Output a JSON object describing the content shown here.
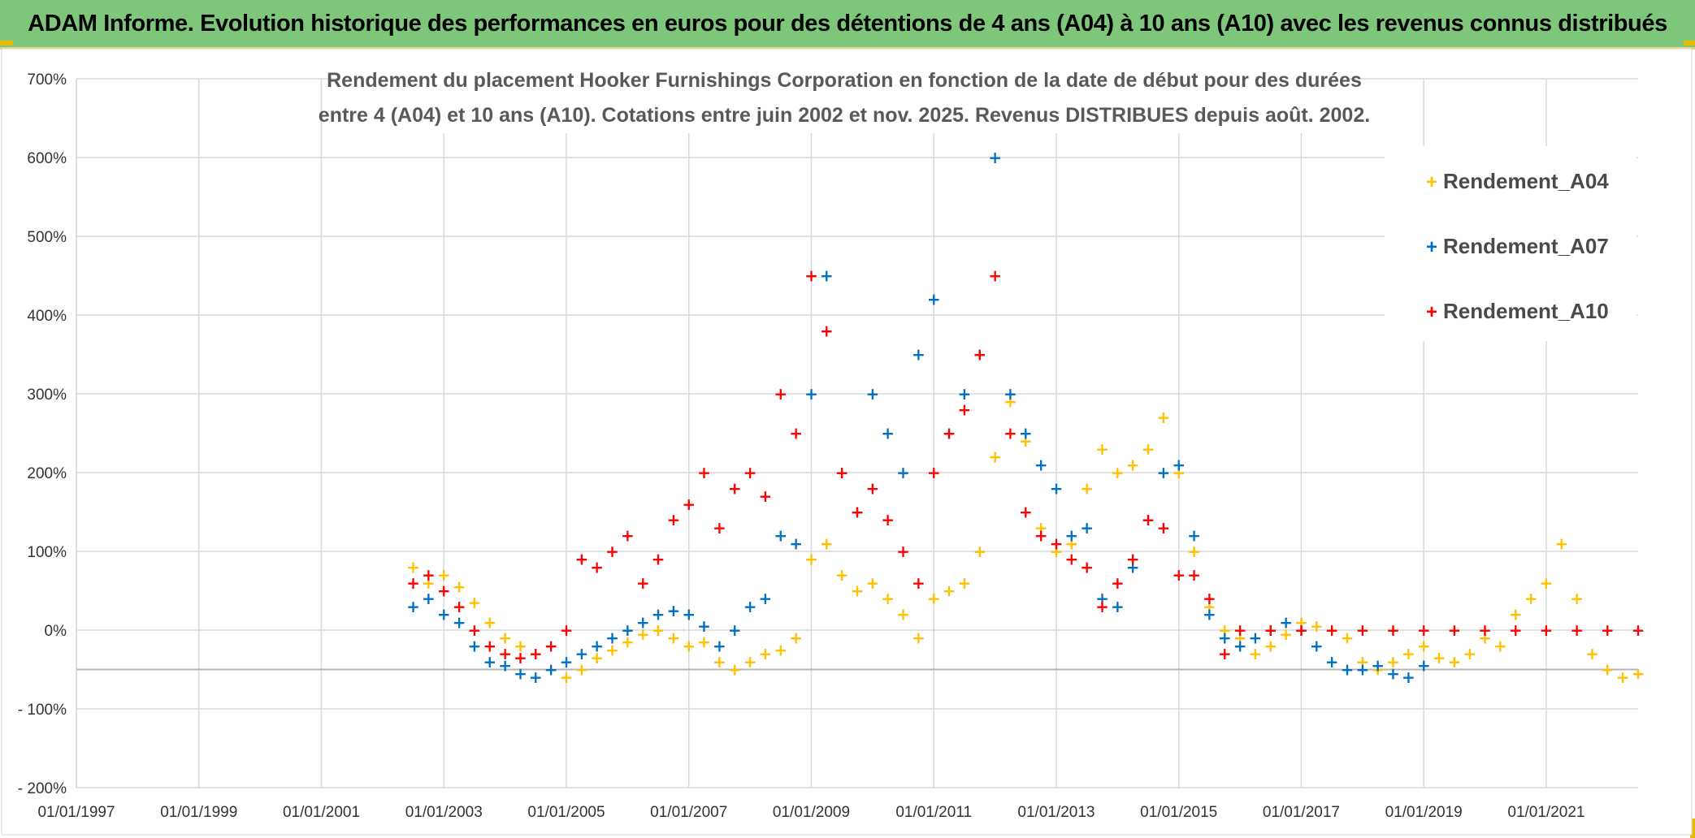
{
  "header": {
    "banner": "ADAM Informe. Evolution historique des performances en euros pour des détentions de 4 ans (A04) à 10 ans (A10) avec les revenus connus distribués"
  },
  "chart_data": {
    "type": "scatter",
    "title_lines": [
      "Rendement du placement Hooker Furnishings Corporation en fonction de la date de début pour des durées",
      "entre 4 (A04) et 10 ans (A10). Cotations entre juin 2002 et nov. 2025. Revenus DISTRIBUES depuis août. 2002."
    ],
    "xlabel": "",
    "ylabel": "",
    "xlim": [
      1997.0,
      2022.5
    ],
    "ylim": [
      -200,
      700
    ],
    "x_ticks": [
      "01/01/1997",
      "01/01/1999",
      "01/01/2001",
      "01/01/2003",
      "01/01/2005",
      "01/01/2007",
      "01/01/2009",
      "01/01/2011",
      "01/01/2013",
      "01/01/2015",
      "01/01/2017",
      "01/01/2019",
      "01/01/2021"
    ],
    "x_tick_values": [
      1997,
      1999,
      2001,
      2003,
      2005,
      2007,
      2009,
      2011,
      2013,
      2015,
      2017,
      2019,
      2021
    ],
    "y_ticks": [
      "- 200%",
      "- 100%",
      "0%",
      "100%",
      "200%",
      "300%",
      "400%",
      "500%",
      "600%",
      "700%"
    ],
    "y_tick_values": [
      -200,
      -100,
      0,
      100,
      200,
      300,
      400,
      500,
      600,
      700
    ],
    "grid": true,
    "legend_position": "top-right",
    "series": [
      {
        "name": "Rendement_A04",
        "color": "#ffc000",
        "x": [
          2002.5,
          2002.75,
          2003.0,
          2003.25,
          2003.5,
          2003.75,
          2004.0,
          2004.25,
          2004.5,
          2004.75,
          2005.0,
          2005.25,
          2005.5,
          2005.75,
          2006.0,
          2006.25,
          2006.5,
          2006.75,
          2007.0,
          2007.25,
          2007.5,
          2007.75,
          2008.0,
          2008.25,
          2008.5,
          2008.75,
          2009.0,
          2009.25,
          2009.5,
          2009.75,
          2010.0,
          2010.25,
          2010.5,
          2010.75,
          2011.0,
          2011.25,
          2011.5,
          2011.75,
          2012.0,
          2012.25,
          2012.5,
          2012.75,
          2013.0,
          2013.25,
          2013.5,
          2013.75,
          2014.0,
          2014.25,
          2014.5,
          2014.75,
          2015.0,
          2015.25,
          2015.5,
          2015.75,
          2016.0,
          2016.25,
          2016.5,
          2016.75,
          2017.0,
          2017.25,
          2017.5,
          2017.75,
          2018.0,
          2018.25,
          2018.5,
          2018.75,
          2019.0,
          2019.25,
          2019.5,
          2019.75,
          2020.0,
          2020.25,
          2020.5,
          2020.75,
          2021.0,
          2021.25,
          2021.5,
          2021.75,
          2022.0,
          2022.25,
          2022.5
        ],
        "y": [
          80,
          60,
          70,
          55,
          35,
          10,
          -10,
          -20,
          -30,
          -50,
          -60,
          -50,
          -35,
          -25,
          -15,
          -5,
          0,
          -10,
          -20,
          -15,
          -40,
          -50,
          -40,
          -30,
          -25,
          -10,
          90,
          110,
          70,
          50,
          60,
          40,
          20,
          -10,
          40,
          50,
          60,
          100,
          220,
          290,
          240,
          130,
          100,
          110,
          180,
          230,
          200,
          210,
          230,
          270,
          200,
          100,
          30,
          0,
          -10,
          -30,
          -20,
          -5,
          10,
          5,
          0,
          -10,
          -40,
          -50,
          -40,
          -30,
          -20,
          -35,
          -40,
          -30,
          -10,
          -20,
          20,
          40,
          60,
          110,
          40,
          -30,
          -50,
          -60,
          -55
        ]
      },
      {
        "name": "Rendement_A07",
        "color": "#0070c0",
        "x": [
          2002.5,
          2002.75,
          2003.0,
          2003.25,
          2003.5,
          2003.75,
          2004.0,
          2004.25,
          2004.5,
          2004.75,
          2005.0,
          2005.25,
          2005.5,
          2005.75,
          2006.0,
          2006.25,
          2006.5,
          2006.75,
          2007.0,
          2007.25,
          2007.5,
          2007.75,
          2008.0,
          2008.25,
          2008.5,
          2008.75,
          2009.0,
          2009.25,
          2009.5,
          2009.75,
          2010.0,
          2010.25,
          2010.5,
          2010.75,
          2011.0,
          2011.25,
          2011.5,
          2011.75,
          2012.0,
          2012.25,
          2012.5,
          2012.75,
          2013.0,
          2013.25,
          2013.5,
          2013.75,
          2014.0,
          2014.25,
          2014.5,
          2014.75,
          2015.0,
          2015.25,
          2015.5,
          2015.75,
          2016.0,
          2016.25,
          2016.5,
          2016.75,
          2017.0,
          2017.25,
          2017.5,
          2017.75,
          2018.0,
          2018.25,
          2018.5,
          2018.75,
          2019.0
        ],
        "y": [
          30,
          40,
          20,
          10,
          -20,
          -40,
          -45,
          -55,
          -60,
          -50,
          -40,
          -30,
          -20,
          -10,
          0,
          10,
          20,
          25,
          20,
          5,
          -20,
          0,
          30,
          40,
          120,
          110,
          300,
          450,
          200,
          150,
          300,
          250,
          200,
          350,
          420,
          250,
          300,
          350,
          600,
          300,
          250,
          210,
          180,
          120,
          130,
          40,
          30,
          80,
          140,
          200,
          210,
          120,
          20,
          -10,
          -20,
          -10,
          0,
          10,
          0,
          -20,
          -40,
          -50,
          -50,
          -45,
          -55,
          -60,
          -45
        ]
      },
      {
        "name": "Rendement_A10",
        "color": "#ff0000",
        "x": [
          2002.5,
          2002.75,
          2003.0,
          2003.25,
          2003.5,
          2003.75,
          2004.0,
          2004.25,
          2004.5,
          2004.75,
          2005.0,
          2005.25,
          2005.5,
          2005.75,
          2006.0,
          2006.25,
          2006.5,
          2006.75,
          2007.0,
          2007.25,
          2007.5,
          2007.75,
          2008.0,
          2008.25,
          2008.5,
          2008.75,
          2009.0,
          2009.25,
          2009.5,
          2009.75,
          2010.0,
          2010.25,
          2010.5,
          2010.75,
          2011.0,
          2011.25,
          2011.5,
          2011.75,
          2012.0,
          2012.25,
          2012.5,
          2012.75,
          2013.0,
          2013.25,
          2013.5,
          2013.75,
          2014.0,
          2014.25,
          2014.5,
          2014.75,
          2015.0,
          2015.25,
          2015.5,
          2015.75,
          2016.0,
          2016.5,
          2017.0,
          2017.5,
          2018.0,
          2018.5,
          2019.0,
          2019.5,
          2020.0,
          2020.5,
          2021.0,
          2021.5,
          2022.0,
          2022.5
        ],
        "y": [
          60,
          70,
          50,
          30,
          0,
          -20,
          -30,
          -35,
          -30,
          -20,
          0,
          90,
          80,
          100,
          120,
          60,
          90,
          140,
          160,
          200,
          130,
          180,
          200,
          170,
          300,
          250,
          450,
          380,
          200,
          150,
          180,
          140,
          100,
          60,
          200,
          250,
          280,
          350,
          450,
          250,
          150,
          120,
          110,
          90,
          80,
          30,
          60,
          90,
          140,
          130,
          70,
          70,
          40,
          -30,
          0,
          0,
          0,
          0,
          0,
          0,
          0,
          0,
          0,
          0,
          0,
          0,
          0,
          0
        ]
      }
    ]
  }
}
